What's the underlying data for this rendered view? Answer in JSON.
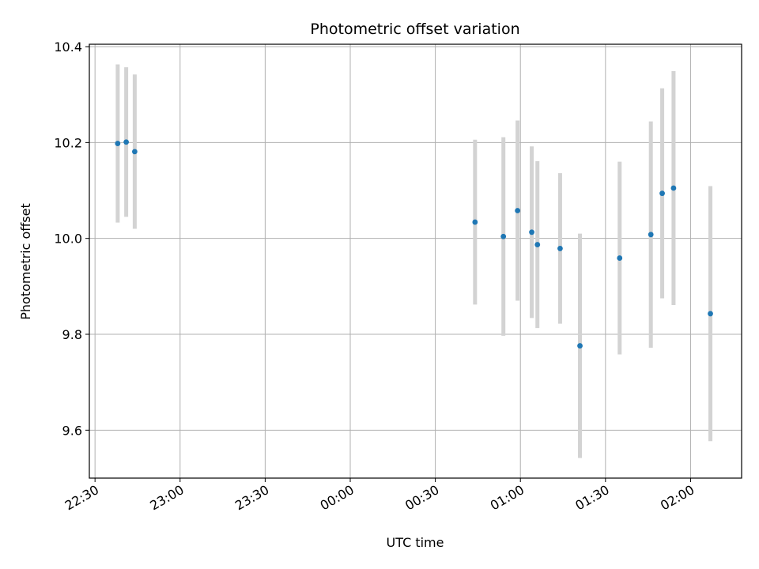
{
  "chart_data": {
    "type": "scatter",
    "title": "Photometric offset variation",
    "xlabel": "UTC time",
    "ylabel": "Photometric offset",
    "x_is_time": true,
    "xlim": [
      "22:28",
      "02:18"
    ],
    "ylim": [
      9.5,
      10.405
    ],
    "xticks": [
      "22:30",
      "23:00",
      "23:30",
      "00:00",
      "00:30",
      "01:00",
      "01:30",
      "02:00"
    ],
    "yticks": [
      "9.6",
      "9.8",
      "10.0",
      "10.2",
      "10.4"
    ],
    "grid": true,
    "legend": "none",
    "colors": {
      "points": "#1f77b4",
      "errorbars": "#d3d3d3",
      "grid": "#b0b0b0"
    },
    "series": [
      {
        "x": [
          "22:38",
          "22:41",
          "22:44",
          "00:44",
          "00:54",
          "00:59",
          "01:04",
          "01:06",
          "01:14",
          "01:21",
          "01:35",
          "01:46",
          "01:50",
          "01:54",
          "02:07"
        ],
        "y": [
          10.198,
          10.201,
          10.181,
          10.034,
          10.004,
          10.058,
          10.013,
          9.987,
          9.979,
          9.776,
          9.959,
          10.008,
          10.094,
          10.105,
          9.843
        ],
        "yerr": [
          0.165,
          0.156,
          0.161,
          0.172,
          0.207,
          0.188,
          0.179,
          0.174,
          0.157,
          0.234,
          0.201,
          0.236,
          0.219,
          0.244,
          0.266
        ]
      }
    ]
  }
}
